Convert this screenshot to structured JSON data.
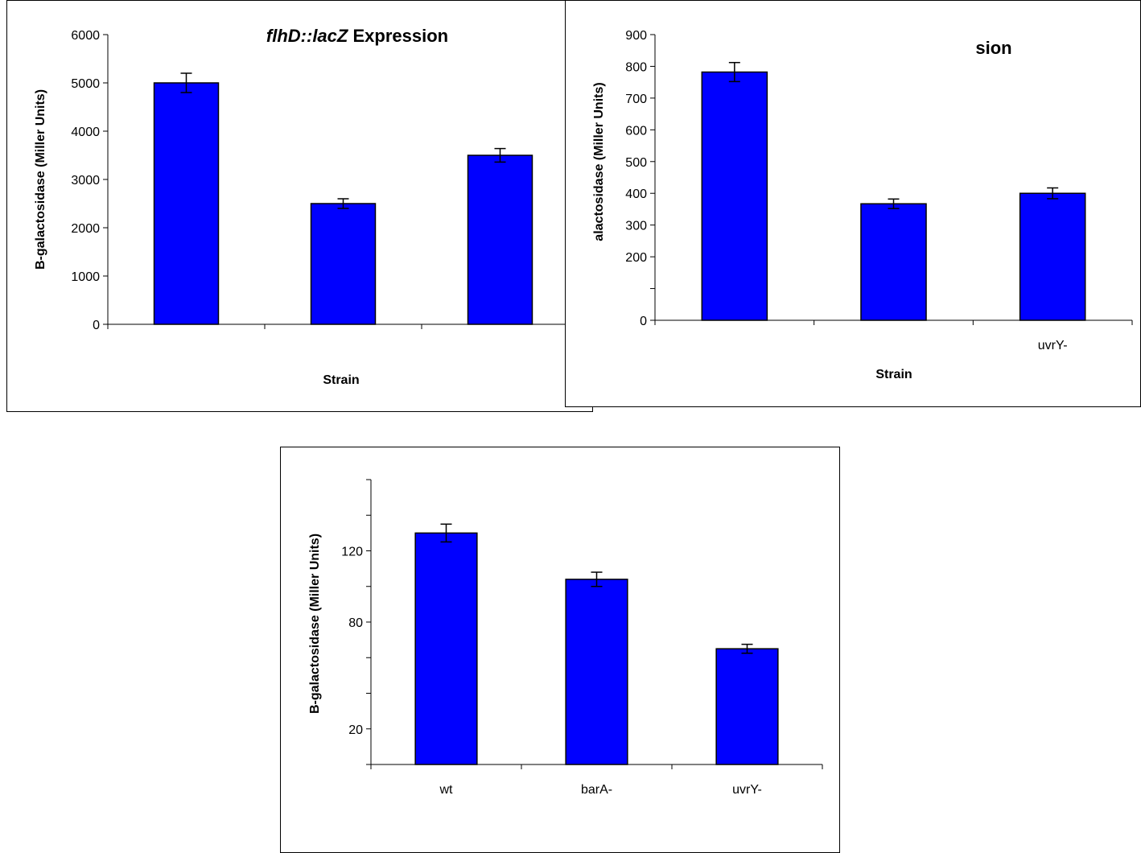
{
  "colors": {
    "bar_fill": "#0000ff",
    "bar_stroke": "#000000",
    "axis": "#000000",
    "background": "#ffffff"
  },
  "chart_data": [
    {
      "type": "bar",
      "title": "flhD::lacZ Expression",
      "title_italic_part": "flhD::lacZ",
      "title_plain_part": " Expression",
      "xlabel": "Strain",
      "ylabel": "B-galactosidase (Miller Units)",
      "categories": [
        "",
        "",
        ""
      ],
      "values": [
        5000,
        2500,
        3500
      ],
      "errors": [
        200,
        100,
        140
      ],
      "ylim": [
        0,
        6000
      ],
      "yticks": [
        0,
        1000,
        2000,
        3000,
        4000,
        5000,
        6000
      ],
      "ytick_labels": [
        "0",
        "1000",
        "2000",
        "3000",
        "4000",
        "5000",
        "6000"
      ],
      "grid": false,
      "legend": "none"
    },
    {
      "type": "bar",
      "title": "sion",
      "xlabel": "Strain",
      "ylabel": "alactosidase (Miller Units)",
      "categories": [
        "",
        "",
        "uvrY-"
      ],
      "values": [
        782,
        367,
        400
      ],
      "errors": [
        30,
        15,
        17
      ],
      "ylim": [
        0,
        900
      ],
      "yticks": [
        0,
        100,
        200,
        300,
        400,
        500,
        600,
        700,
        800,
        900
      ],
      "ytick_labels": [
        "0",
        "",
        "200",
        "300",
        "400",
        "500",
        "600",
        "700",
        "800",
        "900"
      ],
      "grid": false,
      "legend": "none"
    },
    {
      "type": "bar",
      "title": "",
      "xlabel": "",
      "ylabel": "B-galactosidase (Miller Units)",
      "categories": [
        "wt",
        "barA-",
        "uvrY-"
      ],
      "values": [
        130,
        104,
        65
      ],
      "errors": [
        5,
        4,
        2.5
      ],
      "ylim": [
        0,
        160
      ],
      "yticks": [
        0,
        20,
        40,
        60,
        80,
        100,
        120,
        140,
        160
      ],
      "ytick_labels": [
        "",
        "20",
        "",
        "",
        "80",
        "",
        "120",
        "",
        ""
      ],
      "grid": false,
      "legend": "none"
    }
  ]
}
